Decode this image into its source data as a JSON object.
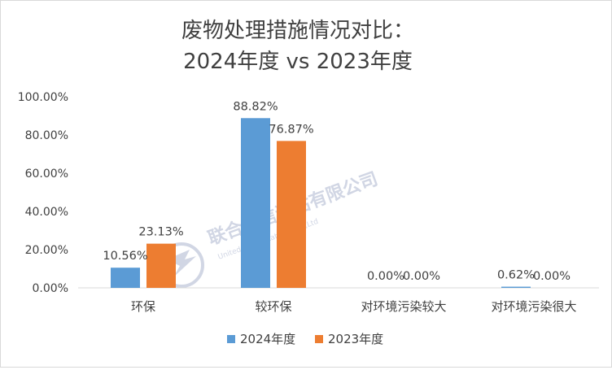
{
  "chart_data": {
    "type": "bar",
    "title_lines": [
      "废物处理措施情况对比：",
      "2024年度 vs 2023年度"
    ],
    "categories": [
      "环保",
      "较环保",
      "对环境污染较大",
      "对环境污染很大"
    ],
    "series": [
      {
        "name": "2024年度",
        "color": "#5b9bd5",
        "values": [
          10.56,
          88.82,
          0.0,
          0.62
        ],
        "labels": [
          "10.56%",
          "88.82%",
          "0.00%",
          "0.62%"
        ]
      },
      {
        "name": "2023年度",
        "color": "#ed7d31",
        "values": [
          23.13,
          76.87,
          0.0,
          0.0
        ],
        "labels": [
          "23.13%",
          "76.87%",
          "0.00%",
          "0.00%"
        ]
      }
    ],
    "y_ticks": [
      0,
      20,
      40,
      60,
      80,
      100
    ],
    "y_tick_labels": [
      "0.00%",
      "20.00%",
      "40.00%",
      "60.00%",
      "80.00%",
      "100.00%"
    ],
    "ylim": [
      0,
      100
    ],
    "grid": false,
    "legend_position": "bottom"
  },
  "watermark": {
    "text": "联合资信评估有限公司",
    "subtext": "United Credit Ratings Co.,Ltd"
  }
}
